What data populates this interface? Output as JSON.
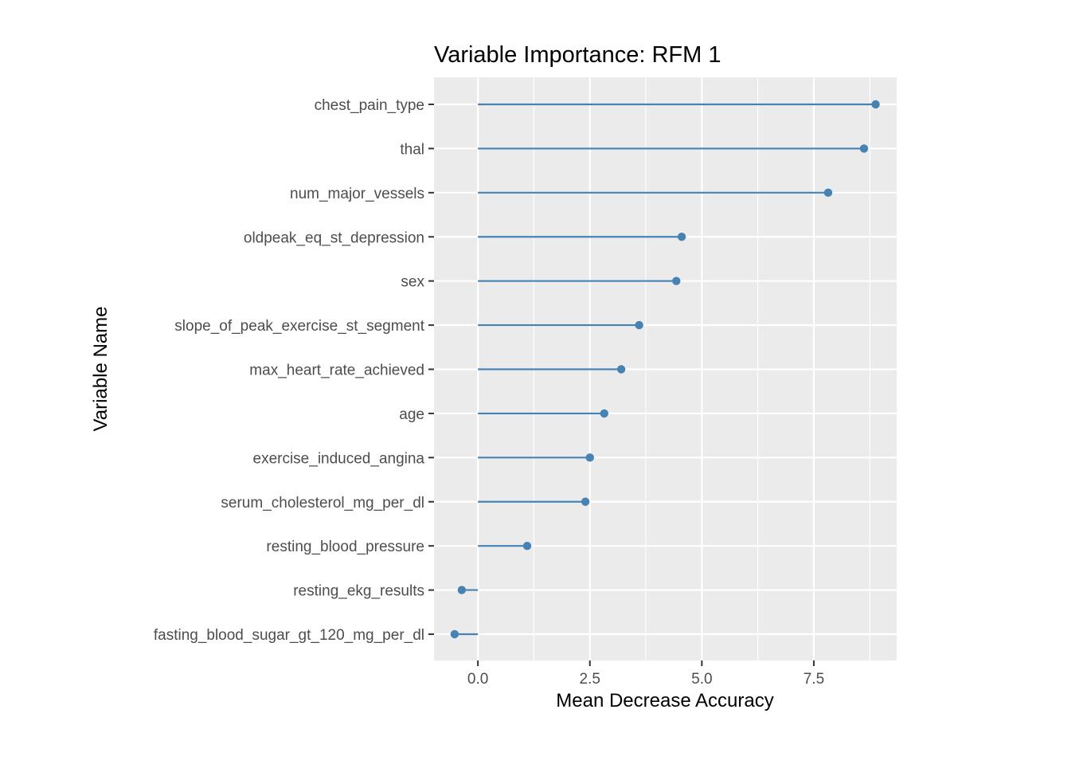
{
  "chart_data": {
    "type": "lollipop",
    "title": "Variable Importance: RFM 1",
    "xlabel": "Mean Decrease Accuracy",
    "ylabel": "Variable Name",
    "xlim": [
      -0.98,
      9.35
    ],
    "x_ticks": [
      0.0,
      2.5,
      5.0,
      7.5
    ],
    "x_tick_labels": [
      "0.0",
      "2.5",
      "5.0",
      "7.5"
    ],
    "grid": true,
    "color": "#4682B4",
    "panel_color": "#EBEBEB",
    "categories": [
      "chest_pain_type",
      "thal",
      "num_major_vessels",
      "oldpeak_eq_st_depression",
      "sex",
      "slope_of_peak_exercise_st_segment",
      "max_heart_rate_achieved",
      "age",
      "exercise_induced_angina",
      "serum_cholesterol_mg_per_dl",
      "resting_blood_pressure",
      "resting_ekg_results",
      "fasting_blood_sugar_gt_120_mg_per_dl"
    ],
    "values": [
      8.88,
      8.62,
      7.82,
      4.55,
      4.43,
      3.6,
      3.2,
      2.82,
      2.5,
      2.4,
      1.1,
      -0.36,
      -0.52
    ]
  }
}
